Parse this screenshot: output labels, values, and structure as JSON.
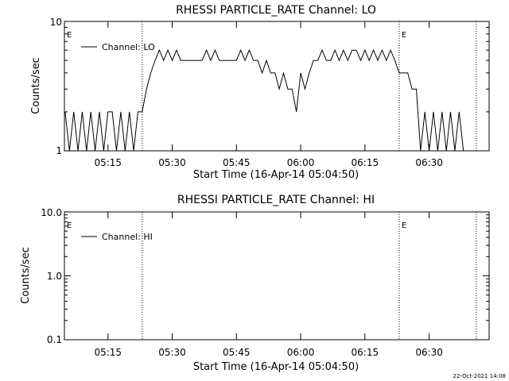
{
  "chart_data": [
    {
      "type": "line",
      "title": "RHESSI PARTICLE_RATE Channel: LO",
      "xlabel": "Start Time (16-Apr-14 05:04:50)",
      "ylabel": "Counts/sec",
      "y_scale": "log",
      "ylim": [
        1,
        10
      ],
      "y_ticks": [
        "1",
        "10"
      ],
      "xlim": [
        "05:04:50",
        "06:44:00"
      ],
      "x_ticks": [
        "05:15",
        "05:30",
        "05:45",
        "06:00",
        "06:15",
        "06:30"
      ],
      "legend": {
        "label": "Channel: LO",
        "placement": "top-left"
      },
      "grid": false,
      "vlines": [
        "05:23:00",
        "06:23:00",
        "06:41:00"
      ],
      "markers": [
        {
          "text": "E",
          "x": "05:04:50"
        },
        {
          "text": "E",
          "x": "06:23:00"
        }
      ],
      "series": [
        {
          "name": "Channel: LO",
          "x": [
            "05:05:00",
            "05:06:00",
            "05:07:00",
            "05:08:00",
            "05:09:00",
            "05:10:00",
            "05:11:00",
            "05:12:00",
            "05:13:00",
            "05:14:00",
            "05:15:00",
            "05:16:00",
            "05:17:00",
            "05:18:00",
            "05:19:00",
            "05:20:00",
            "05:21:00",
            "05:22:00",
            "05:23:00",
            "05:24:00",
            "05:25:00",
            "05:26:00",
            "05:27:00",
            "05:28:00",
            "05:29:00",
            "05:30:00",
            "05:31:00",
            "05:32:00",
            "05:33:00",
            "05:34:00",
            "05:35:00",
            "05:36:00",
            "05:37:00",
            "05:38:00",
            "05:39:00",
            "05:40:00",
            "05:41:00",
            "05:42:00",
            "05:43:00",
            "05:44:00",
            "05:45:00",
            "05:46:00",
            "05:47:00",
            "05:48:00",
            "05:49:00",
            "05:50:00",
            "05:51:00",
            "05:52:00",
            "05:53:00",
            "05:54:00",
            "05:55:00",
            "05:56:00",
            "05:57:00",
            "05:58:00",
            "05:59:00",
            "06:00:00",
            "06:01:00",
            "06:02:00",
            "06:03:00",
            "06:04:00",
            "06:05:00",
            "06:06:00",
            "06:07:00",
            "06:08:00",
            "06:09:00",
            "06:10:00",
            "06:11:00",
            "06:12:00",
            "06:13:00",
            "06:14:00",
            "06:15:00",
            "06:16:00",
            "06:17:00",
            "06:18:00",
            "06:19:00",
            "06:20:00",
            "06:21:00",
            "06:22:00",
            "06:23:00",
            "06:24:00",
            "06:25:00",
            "06:26:00",
            "06:27:00",
            "06:28:00",
            "06:29:00",
            "06:30:00",
            "06:31:00",
            "06:32:00",
            "06:33:00",
            "06:34:00",
            "06:35:00",
            "06:36:00",
            "06:37:00",
            "06:38:00",
            "06:39:00",
            "06:40:00"
          ],
          "y": [
            2,
            1,
            2,
            1,
            2,
            1,
            2,
            1,
            2,
            1,
            2,
            2,
            1,
            2,
            1,
            2,
            1,
            2,
            2,
            3,
            4,
            5,
            6,
            5,
            6,
            5,
            6,
            5,
            5,
            5,
            5,
            5,
            5,
            6,
            5,
            6,
            5,
            5,
            5,
            5,
            5,
            6,
            5,
            6,
            5,
            5,
            4,
            5,
            4,
            4,
            3,
            4,
            3,
            3,
            2,
            4,
            3,
            4,
            5,
            5,
            6,
            5,
            5,
            6,
            5,
            6,
            5,
            6,
            6,
            5,
            6,
            5,
            6,
            5,
            6,
            5,
            6,
            5,
            4,
            4,
            4,
            3,
            3,
            1,
            2,
            1,
            2,
            1,
            2,
            1,
            2,
            1,
            2,
            1,
            1,
            1
          ]
        }
      ]
    },
    {
      "type": "line",
      "title": "RHESSI PARTICLE_RATE Channel: HI",
      "xlabel": "Start Time (16-Apr-14 05:04:50)",
      "ylabel": "Counts/sec",
      "y_scale": "log",
      "ylim": [
        0.1,
        10.0
      ],
      "y_ticks": [
        "0.1",
        "1.0",
        "10.0"
      ],
      "xlim": [
        "05:04:50",
        "06:44:00"
      ],
      "x_ticks": [
        "05:15",
        "05:30",
        "05:45",
        "06:00",
        "06:15",
        "06:30"
      ],
      "legend": {
        "label": "Channel: HI",
        "placement": "top-left"
      },
      "grid": false,
      "vlines": [
        "05:23:00",
        "06:23:00",
        "06:41:00"
      ],
      "markers": [
        {
          "text": "E",
          "x": "05:04:50"
        },
        {
          "text": "E",
          "x": "06:23:00"
        }
      ],
      "series": [
        {
          "name": "Channel: HI",
          "x": [],
          "y": []
        }
      ]
    }
  ],
  "footer": {
    "timestamp": "22-Oct-2021 14:08"
  }
}
